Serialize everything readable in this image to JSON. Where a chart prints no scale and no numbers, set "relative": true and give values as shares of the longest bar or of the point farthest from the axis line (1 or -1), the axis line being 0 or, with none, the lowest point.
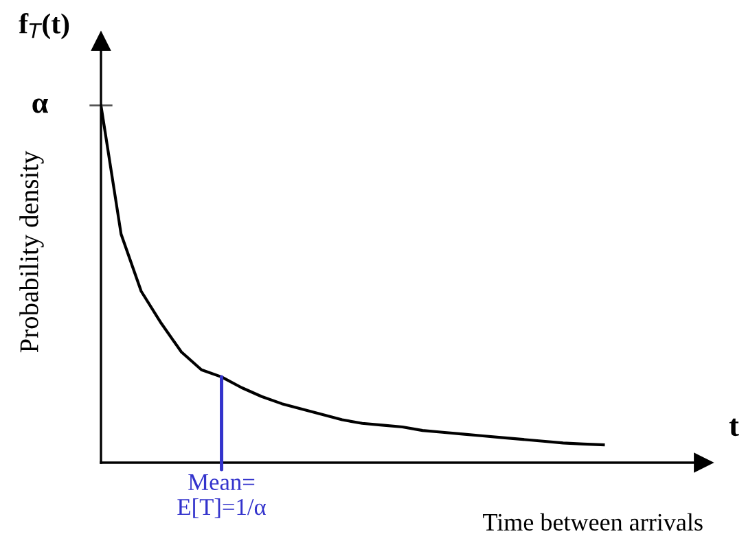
{
  "chart_data": {
    "type": "line",
    "relative": true,
    "title": "f$_{T}$(t)",
    "xlabel": "Time between arrivals",
    "ylabel": "Probability density",
    "categories": [
      null,
      null,
      null,
      null,
      null,
      null,
      null,
      null,
      null,
      null,
      null,
      null,
      null,
      null,
      null,
      null,
      null,
      null,
      null,
      null,
      null,
      null,
      null,
      null,
      null,
      null
    ],
    "series": [
      {
        "color": "#000000",
        "values": [
          1.0,
          0.64,
          0.48,
          0.39,
          0.31,
          0.26,
          0.24,
          0.21,
          0.185,
          0.165,
          0.15,
          0.135,
          0.12,
          0.11,
          0.105,
          0.1,
          0.09,
          0.085,
          0.08,
          0.075,
          0.07,
          0.065,
          0.06,
          0.055,
          0.052,
          0.05
        ]
      }
    ],
    "annotations": [
      "α",
      {
        "text": "Mean=\nE[T]=1/α",
        "y": 0.24
      },
      "t"
    ],
    "legend": false
  }
}
